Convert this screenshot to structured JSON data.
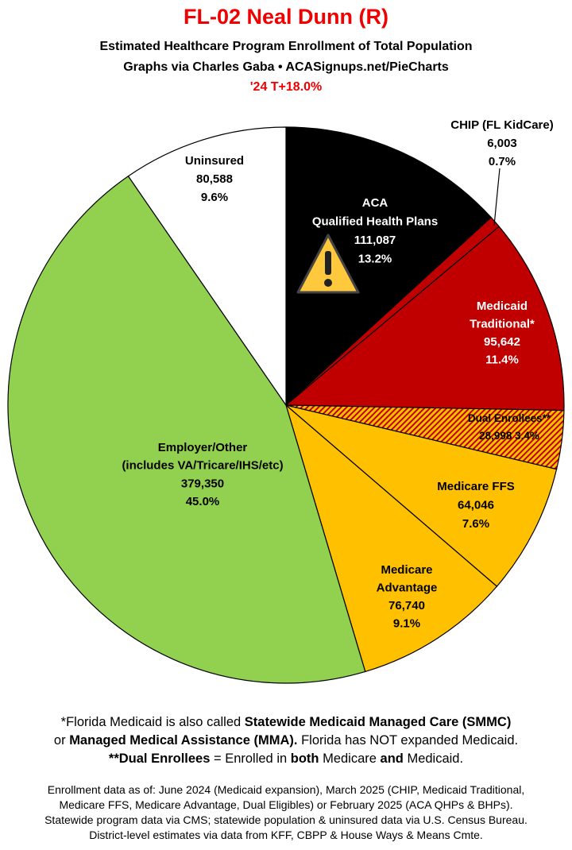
{
  "header": {
    "title": "FL-02 Neal Dunn (R)",
    "subtitle_1": "Estimated Healthcare Program Enrollment of Total Population",
    "subtitle_2": "Graphs via Charles Gaba  •  ACASignups.net/PieCharts",
    "note": "'24 T+18.0%"
  },
  "chart_data": {
    "type": "pie",
    "start": "top",
    "direction": "clockwise",
    "slices": [
      {
        "lines": [
          "ACA",
          "Qualified Health Plans",
          "111,087",
          "13.2%"
        ],
        "label": "ACA Qualified Health Plans",
        "value": 111087,
        "percent": 13.2,
        "color": "#000000",
        "text_color": "#ffffff",
        "icon": "warning-icon"
      },
      {
        "lines": [
          "CHIP (FL KidCare)",
          "6,003",
          "0.7%"
        ],
        "label": "CHIP (FL KidCare)",
        "value": 6003,
        "percent": 0.7,
        "color": "#c00000",
        "text_color": "#000000"
      },
      {
        "lines": [
          "Medicaid",
          "Traditional*",
          "95,642",
          "11.4%"
        ],
        "label": "Medicaid Traditional*",
        "value": 95642,
        "percent": 11.4,
        "color": "#c00000",
        "text_color": "#ffffff"
      },
      {
        "lines": [
          "Dual Enrollees**",
          "28,998 3.4%"
        ],
        "label": "Dual Enrollees**",
        "value": 28998,
        "percent": 3.4,
        "color": "#ffc000",
        "hatch_color": "#c00000",
        "text_color": "#000000"
      },
      {
        "lines": [
          "Medicare FFS",
          "64,046",
          "7.6%"
        ],
        "label": "Medicare FFS",
        "value": 64046,
        "percent": 7.6,
        "color": "#ffc000",
        "text_color": "#000000"
      },
      {
        "lines": [
          "Medicare",
          "Advantage",
          "76,740",
          "9.1%"
        ],
        "label": "Medicare Advantage",
        "value": 76740,
        "percent": 9.1,
        "color": "#ffc000",
        "text_color": "#000000"
      },
      {
        "lines": [
          "Employer/Other",
          "(includes VA/Tricare/IHS/etc)",
          "379,350",
          "45.0%"
        ],
        "label": "Employer/Other (includes VA/Tricare/IHS/etc)",
        "value": 379350,
        "percent": 45.0,
        "color": "#92d050",
        "text_color": "#000000"
      },
      {
        "lines": [
          "Uninsured",
          "80,588",
          "9.6%"
        ],
        "label": "Uninsured",
        "value": 80588,
        "percent": 9.6,
        "color": "#ffffff",
        "text_color": "#000000"
      }
    ]
  },
  "footnotes": [
    [
      {
        "t": "*Florida Medicaid is also called ",
        "b": false
      },
      {
        "t": "Statewide Medicaid Managed Care (SMMC)",
        "b": true
      }
    ],
    [
      {
        "t": "or ",
        "b": false
      },
      {
        "t": "Managed Medical Assistance (MMA).",
        "b": true
      },
      {
        "t": " Florida has NOT expanded Medicaid.",
        "b": false
      }
    ],
    [
      {
        "t": "**Dual Enrollees",
        "b": true
      },
      {
        "t": " = Enrolled in ",
        "b": false
      },
      {
        "t": "both",
        "b": true
      },
      {
        "t": " Medicare ",
        "b": false
      },
      {
        "t": "and",
        "b": true
      },
      {
        "t": " Medicaid.",
        "b": false
      }
    ]
  ],
  "sources": [
    "Enrollment data as of: June 2024 (Medicaid expansion), March 2025 (CHIP, Medicaid Traditional,",
    "Medicare FFS, Medicare Advantage, Dual Eligibles) or February 2025 (ACA QHPs & BHPs).",
    "Statewide program data via CMS; statewide population & uninsured data via U.S. Census Bureau.",
    "District-level estimates via data from KFF, CBPP & House Ways & Means Cmte."
  ]
}
